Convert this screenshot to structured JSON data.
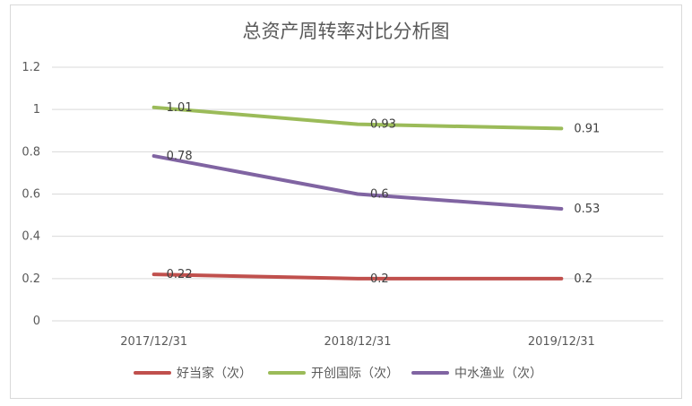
{
  "chart_data": {
    "type": "line",
    "title": "总资产周转率对比分析图",
    "categories": [
      "2017/12/31",
      "2018/12/31",
      "2019/12/31"
    ],
    "series": [
      {
        "name": "好当家（次）",
        "color": "#c0504d",
        "values": [
          0.22,
          0.2,
          0.2
        ],
        "labels": [
          "0.22",
          "0.2",
          "0.2"
        ]
      },
      {
        "name": "开创国际（次）",
        "color": "#9bbb59",
        "values": [
          1.01,
          0.93,
          0.91
        ],
        "labels": [
          "1.01",
          "0.93",
          "0.91"
        ]
      },
      {
        "name": "中水渔业（次）",
        "color": "#8064a2",
        "values": [
          0.78,
          0.6,
          0.53
        ],
        "labels": [
          "0.78",
          "0.6",
          "0.53"
        ]
      }
    ],
    "yticks": [
      "0",
      "0.2",
      "0.4",
      "0.6",
      "0.8",
      "1",
      "1.2"
    ],
    "ylim": [
      0,
      1.2
    ],
    "grid": true,
    "legend": "bottom"
  }
}
